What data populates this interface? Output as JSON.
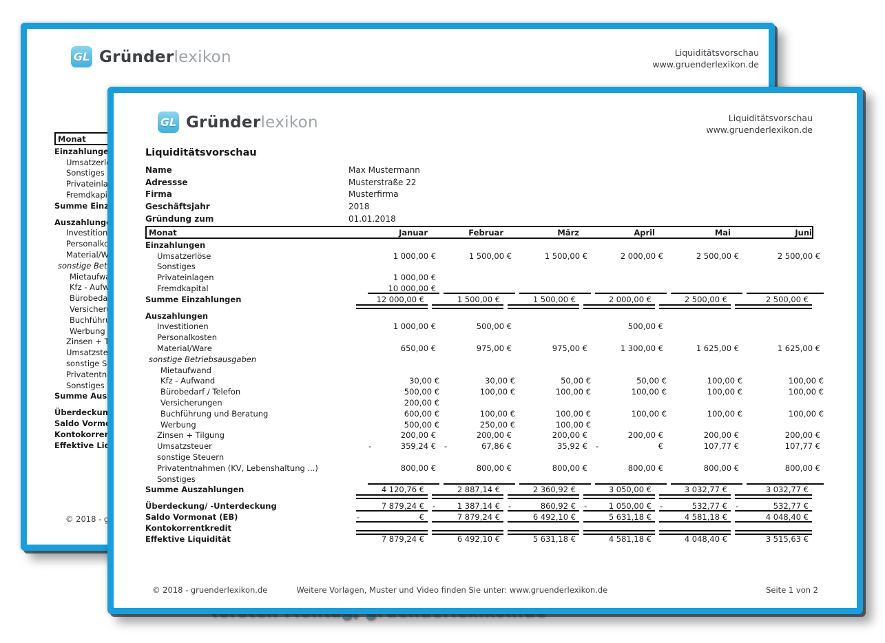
{
  "colors": {
    "page_border_accent": "#1b9dd9",
    "caption_blue": "#2d95d5",
    "logo_icon_blue": "#55c3e8"
  },
  "brand": {
    "icon_text": "GL",
    "name_bold": "Gründer",
    "name_light": "lexikon"
  },
  "header_right": {
    "line1": "Liquiditätsvorschau",
    "line2": "www.gruenderlexikon.de"
  },
  "title": "Liquiditätsvorschau",
  "info": {
    "rows": [
      {
        "label": "Name",
        "value": "Max Mustermann"
      },
      {
        "label": "Adressse",
        "value": "Musterstraße 22"
      },
      {
        "label": "Firma",
        "value": "Musterfirma"
      },
      {
        "label": "Geschäftsjahr",
        "value": "2018"
      },
      {
        "label": "Gründung zum",
        "value": "01.01.2018"
      }
    ]
  },
  "table": {
    "month_header": "Monat",
    "columns": [
      "Januar",
      "Februar",
      "März",
      "April",
      "Mai",
      "Juni"
    ],
    "rows": [
      {
        "label": "Einzahlungen",
        "style": "section"
      },
      {
        "label": "Umsatzerlöse",
        "style": "item",
        "values": [
          "1 000,00 €",
          "1 500,00 €",
          "1 500,00 €",
          "2 000,00 €",
          "2 500,00 €",
          "2 500,00 €"
        ]
      },
      {
        "label": "Sonstiges",
        "style": "item"
      },
      {
        "label": "Privateinlagen",
        "style": "item",
        "values": [
          "1 000,00 €",
          "",
          "",
          "",
          "",
          ""
        ]
      },
      {
        "label": "Fremdkapital",
        "style": "item",
        "lines": "bottom",
        "values": [
          "10 000,00 €",
          "",
          "",
          "",
          "",
          ""
        ]
      },
      {
        "label": "Summe Einzahlungen",
        "style": "total",
        "lines": "dbl",
        "values": [
          "12 000,00 €",
          "1 500,00 €",
          "1 500,00 €",
          "2 000,00 €",
          "2 500,00 €",
          "2 500,00 €"
        ]
      },
      {
        "style": "gap"
      },
      {
        "label": "Auszahlungen",
        "style": "section"
      },
      {
        "label": "Investitionen",
        "style": "item",
        "values": [
          "1 000,00 €",
          "500,00 €",
          "",
          "500,00 €",
          "",
          ""
        ]
      },
      {
        "label": "Personalkosten",
        "style": "item"
      },
      {
        "label": "Material/Ware",
        "style": "item",
        "values": [
          "650,00 €",
          "975,00 €",
          "975,00 €",
          "1 300,00 €",
          "1 625,00 €",
          "1 625,00 €"
        ]
      },
      {
        "label": "sonstige Betriebsausgaben",
        "style": "ital"
      },
      {
        "label": "Mietaufwand",
        "style": "item2"
      },
      {
        "label": "Kfz - Aufwand",
        "style": "item2",
        "values": [
          "30,00 €",
          "30,00 €",
          "50,00 €",
          "50,00 €",
          "100,00 €",
          "100,00 €"
        ]
      },
      {
        "label": "Bürobedarf / Telefon",
        "style": "item2",
        "values": [
          "500,00 €",
          "100,00 €",
          "100,00 €",
          "100,00 €",
          "100,00 €",
          "100,00 €"
        ]
      },
      {
        "label": "Versicherungen",
        "style": "item2",
        "values": [
          "200,00 €",
          "",
          "",
          "",
          "",
          ""
        ]
      },
      {
        "label": "Buchführung und Beratung",
        "style": "item2",
        "values": [
          "600,00 €",
          "100,00 €",
          "100,00 €",
          "100,00 €",
          "100,00 €",
          "100,00 €"
        ]
      },
      {
        "label": "Werbung",
        "style": "item2",
        "values": [
          "500,00 €",
          "250,00 €",
          "100,00 €",
          "",
          "",
          ""
        ]
      },
      {
        "label": "Zinsen + Tilgung",
        "style": "item",
        "values": [
          "200,00 €",
          "200,00 €",
          "200,00 €",
          "200,00 €",
          "200,00 €",
          "200,00 €"
        ]
      },
      {
        "label": "Umsatzsteuer",
        "style": "item",
        "values": [
          "- 359,24 €",
          "- 67,86 €",
          "35,92 €",
          "- €",
          "107,77 €",
          "107,77 €"
        ]
      },
      {
        "label": "sonstige Steuern",
        "style": "item"
      },
      {
        "label": "Privatentnahmen (KV, Lebenshaltung ...)",
        "style": "item",
        "values": [
          "800,00 €",
          "800,00 €",
          "800,00 €",
          "800,00 €",
          "800,00 €",
          "800,00 €"
        ]
      },
      {
        "label": "Sonstiges",
        "style": "item",
        "lines": "bottom"
      },
      {
        "label": "Summe Auszahlungen",
        "style": "total",
        "lines": "dbl",
        "values": [
          "4 120,76 €",
          "2 887,14 €",
          "2 360,92 €",
          "3 050,00 €",
          "3 032,77 €",
          "3 032,77 €"
        ]
      },
      {
        "style": "gap"
      },
      {
        "label": "Überdeckung/ -Unterdeckung",
        "style": "total",
        "lines": "bottom",
        "values": [
          "7 879,24 €",
          "- 1 387,14 €",
          "- 860,92 €",
          "- 1 050,00 €",
          "- 532,77 €",
          "- 532,77 €"
        ]
      },
      {
        "label": "Saldo Vormonat (EB)",
        "style": "total",
        "lines": "bottom",
        "values": [
          "- €",
          "7 879,24 €",
          "6 492,10 €",
          "5 631,18 €",
          "4 581,18 €",
          "4 048,40 €"
        ]
      },
      {
        "label": "Kontokorrentkredit",
        "style": "total"
      },
      {
        "label": "Effektive Liquidität",
        "style": "total",
        "lines": "topdbl",
        "values": [
          "7 879,24 €",
          "6 492,10 €",
          "5 631,18 €",
          "4 581,18 €",
          "4 048,40 €",
          "3 515,63 €"
        ]
      }
    ]
  },
  "footer": {
    "copyright": "© 2018 - gruenderlexikon.de",
    "center": "Weitere Vorlagen, Muster und Video finden Sie unter: www.gruenderlexikon.de",
    "page": "Seite 1 von 2"
  },
  "caption": {
    "text": "Torsten Montag, gruenderlexikon.de"
  }
}
